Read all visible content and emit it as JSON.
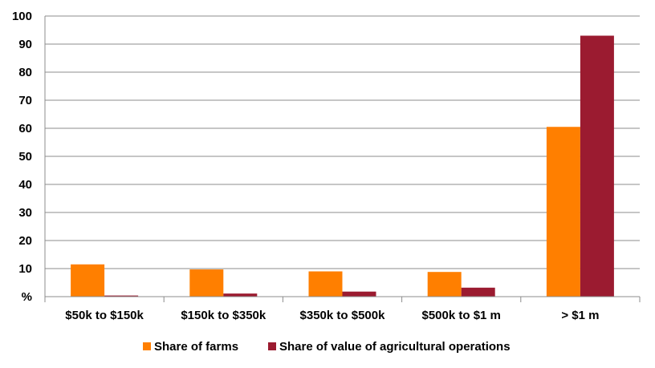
{
  "chart_data": {
    "type": "bar",
    "title": "",
    "xlabel": "",
    "ylabel": "",
    "y_unit_label": "%",
    "ylim": [
      0,
      100
    ],
    "ytick_step": 10,
    "grid": true,
    "legend_position": "bottom",
    "categories": [
      "$50k to $150k",
      "$150k to $350k",
      "$350k to $500k",
      "$500k to $1 m",
      "> $1 m"
    ],
    "series": [
      {
        "name": "Share of farms",
        "color": "#FF7F00",
        "values": [
          11.5,
          9.7,
          9.0,
          8.8,
          60.5
        ]
      },
      {
        "name": "Share of value of agricultural operations",
        "color": "#9B1B30",
        "values": [
          0.4,
          1.1,
          1.8,
          3.2,
          93.0
        ]
      }
    ]
  }
}
